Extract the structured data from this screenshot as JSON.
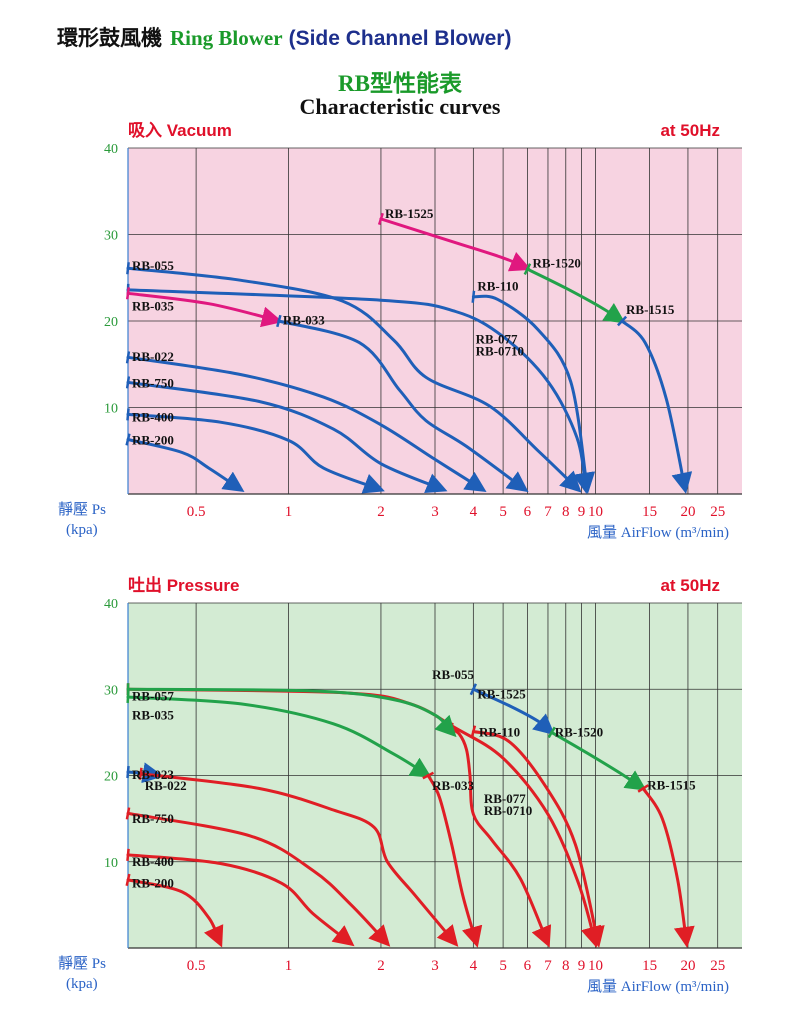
{
  "header": {
    "chinese_title": "環形鼓風機",
    "english_title": "Ring Blower",
    "subtitle": "(Side Channel Blower)"
  },
  "chart_title": "RB型性能表",
  "chart_subtitle": "Characteristic curves",
  "colors": {
    "vacuum_bg": "#f7d3e1",
    "pressure_bg": "#d3ebd3",
    "blue": "#1f5fb8",
    "red": "#e01e25",
    "green": "#22a24a",
    "magenta": "#e0187f",
    "grid": "#333333",
    "frame_blue": "#3a7fd0"
  },
  "chart_data": [
    {
      "type": "line",
      "title": "吸入 Vacuum",
      "frequency": "at 50Hz",
      "xlabel": "風量 AirFlow (m³/min)",
      "ylabel": "靜壓 Ps",
      "ylabel_unit": "(kpa)",
      "x_scale": "log",
      "x_tick_labels": [
        "0.5",
        "1",
        "2",
        "3",
        "4",
        "5",
        "6",
        "7",
        "8",
        "9",
        "10",
        "15",
        "20",
        "25"
      ],
      "x_ticks": [
        0.5,
        1,
        2,
        3,
        4,
        5,
        6,
        7,
        8,
        9,
        10,
        15,
        20,
        25
      ],
      "y_ticks": [
        10,
        20,
        30,
        40
      ],
      "ylim": [
        0,
        40
      ],
      "grid": true,
      "labels": [
        {
          "text": "RB-1525",
          "x": 2.0,
          "y": 31.9
        },
        {
          "text": "RB-1520",
          "x": 6.05,
          "y": 26.2
        },
        {
          "text": "RB-1515",
          "x": 12.2,
          "y": 20.8
        },
        {
          "text": "RB-110",
          "x": 4.0,
          "y": 23.5
        },
        {
          "text": "RB-077",
          "x": 3.95,
          "y": 17.4
        },
        {
          "text": "RB-0710",
          "x": 3.95,
          "y": 16.0
        },
        {
          "text": "RB-055",
          "x": 0.3,
          "y": 25.9
        },
        {
          "text": "RB-035",
          "x": 0.3,
          "y": 21.2
        },
        {
          "text": "RB-033",
          "x": 0.93,
          "y": 19.6
        },
        {
          "text": "RB-022",
          "x": 0.3,
          "y": 15.4
        },
        {
          "text": "RB-750",
          "x": 0.3,
          "y": 12.3
        },
        {
          "text": "RB-400",
          "x": 0.3,
          "y": 8.4
        },
        {
          "text": "RB-200",
          "x": 0.3,
          "y": 5.7
        }
      ],
      "series": [
        {
          "name": "RB-1525",
          "color": "magenta",
          "points": [
            [
              2.0,
              31.8
            ],
            [
              3.4,
              29.2
            ],
            [
              5.0,
              27.3
            ],
            [
              6.0,
              26.1
            ]
          ]
        },
        {
          "name": "RB-1520",
          "color": "green",
          "points": [
            [
              6.0,
              26.0
            ],
            [
              8.0,
              23.8
            ],
            [
              10.5,
              21.5
            ],
            [
              12.2,
              20.0
            ]
          ]
        },
        {
          "name": "RB-1515",
          "color": "blue",
          "points": [
            [
              12.2,
              20.0
            ],
            [
              14.5,
              17.5
            ],
            [
              17.0,
              11.0
            ],
            [
              19.6,
              0.5
            ]
          ]
        },
        {
          "name": "RB-110",
          "color": "blue",
          "points": [
            [
              4.0,
              22.8
            ],
            [
              4.8,
              22.5
            ],
            [
              6.5,
              19.0
            ],
            [
              8.3,
              13.0
            ],
            [
              9.4,
              0.5
            ]
          ]
        },
        {
          "name": "RB-077",
          "color": "blue",
          "points": [
            [
              0.3,
              23.6
            ],
            [
              2.0,
              22.4
            ],
            [
              3.5,
              21.1
            ],
            [
              5.0,
              18.2
            ],
            [
              7.0,
              13.0
            ],
            [
              8.7,
              6.5
            ],
            [
              9.3,
              0.5
            ]
          ]
        },
        {
          "name": "RB-055",
          "color": "blue",
          "points": [
            [
              0.3,
              26.1
            ],
            [
              0.7,
              24.7
            ],
            [
              1.5,
              22.3
            ],
            [
              2.2,
              17.8
            ],
            [
              2.8,
              13.5
            ],
            [
              4.5,
              10.2
            ],
            [
              6.5,
              5.0
            ],
            [
              8.8,
              0.5
            ]
          ]
        },
        {
          "name": "RB-035",
          "color": "magenta",
          "points": [
            [
              0.3,
              23.2
            ],
            [
              0.55,
              22.0
            ],
            [
              0.93,
              20.0
            ]
          ]
        },
        {
          "name": "RB-033",
          "color": "blue",
          "points": [
            [
              0.93,
              20.0
            ],
            [
              1.7,
              17.5
            ],
            [
              2.3,
              12.0
            ],
            [
              2.8,
              8.5
            ],
            [
              3.8,
              5.5
            ],
            [
              5.9,
              0.5
            ]
          ]
        },
        {
          "name": "RB-022",
          "color": "blue",
          "points": [
            [
              0.3,
              15.8
            ],
            [
              0.7,
              13.8
            ],
            [
              1.3,
              11.2
            ],
            [
              2.0,
              8.0
            ],
            [
              3.0,
              4.0
            ],
            [
              4.3,
              0.5
            ]
          ]
        },
        {
          "name": "RB-750",
          "color": "blue",
          "points": [
            [
              0.3,
              12.9
            ],
            [
              0.8,
              10.7
            ],
            [
              1.4,
              7.5
            ],
            [
              2.0,
              3.5
            ],
            [
              3.2,
              0.5
            ]
          ]
        },
        {
          "name": "RB-400",
          "color": "blue",
          "points": [
            [
              0.3,
              9.2
            ],
            [
              0.6,
              8.3
            ],
            [
              1.0,
              6.2
            ],
            [
              1.3,
              3.0
            ],
            [
              2.0,
              0.5
            ]
          ]
        },
        {
          "name": "RB-200",
          "color": "blue",
          "points": [
            [
              0.3,
              6.3
            ],
            [
              0.45,
              4.8
            ],
            [
              0.55,
              3.0
            ],
            [
              0.7,
              0.5
            ]
          ]
        }
      ]
    },
    {
      "type": "line",
      "title": "吐出 Pressure",
      "frequency": "at 50Hz",
      "xlabel": "風量 AirFlow (m³/min)",
      "ylabel": "靜壓 Ps",
      "ylabel_unit": "(kpa)",
      "x_scale": "log",
      "x_tick_labels": [
        "0.5",
        "1",
        "2",
        "3",
        "4",
        "5",
        "6",
        "7",
        "8",
        "9",
        "10",
        "15",
        "20",
        "25"
      ],
      "x_ticks": [
        0.5,
        1,
        2,
        3,
        4,
        5,
        6,
        7,
        8,
        9,
        10,
        15,
        20,
        25
      ],
      "y_ticks": [
        10,
        20,
        30,
        40
      ],
      "ylim": [
        0,
        40
      ],
      "grid": true,
      "labels": [
        {
          "text": "RB-055",
          "x": 2.85,
          "y": 31.2
        },
        {
          "text": "RB-1525",
          "x": 4.0,
          "y": 28.9
        },
        {
          "text": "RB-110",
          "x": 4.05,
          "y": 24.5
        },
        {
          "text": "RB-1520",
          "x": 7.15,
          "y": 24.5
        },
        {
          "text": "RB-057",
          "x": 0.3,
          "y": 28.7
        },
        {
          "text": "RB-035",
          "x": 0.3,
          "y": 26.5
        },
        {
          "text": "RB-023",
          "x": 0.3,
          "y": 19.6
        },
        {
          "text": "RB-022",
          "x": 0.33,
          "y": 18.3
        },
        {
          "text": "RB-033",
          "x": 2.85,
          "y": 18.3
        },
        {
          "text": "RB-1515",
          "x": 14.3,
          "y": 18.4
        },
        {
          "text": "RB-077",
          "x": 4.2,
          "y": 16.8
        },
        {
          "text": "RB-0710",
          "x": 4.2,
          "y": 15.4
        },
        {
          "text": "RB-750",
          "x": 0.3,
          "y": 14.5
        },
        {
          "text": "RB-400",
          "x": 0.3,
          "y": 9.5
        },
        {
          "text": "RB-200",
          "x": 0.3,
          "y": 7.0
        }
      ],
      "series": [
        {
          "name": "RB-1525",
          "color": "blue",
          "points": [
            [
              4.0,
              30.0
            ],
            [
              5.3,
              28.0
            ],
            [
              6.5,
              26.3
            ],
            [
              7.2,
              25.0
            ]
          ]
        },
        {
          "name": "RB-1520",
          "color": "green",
          "points": [
            [
              7.2,
              25.0
            ],
            [
              9.5,
              22.5
            ],
            [
              12.0,
              20.3
            ],
            [
              14.3,
              18.5
            ]
          ]
        },
        {
          "name": "RB-1515",
          "color": "red",
          "points": [
            [
              14.3,
              18.5
            ],
            [
              16.5,
              15.0
            ],
            [
              18.5,
              8.0
            ],
            [
              19.8,
              0.5
            ]
          ]
        },
        {
          "name": "RB-110",
          "color": "red",
          "points": [
            [
              4.0,
              25.1
            ],
            [
              5.2,
              24.0
            ],
            [
              6.8,
              19.0
            ],
            [
              8.6,
              12.0
            ],
            [
              10.2,
              0.5
            ]
          ]
        },
        {
          "name": "RB-077",
          "color": "red",
          "points": [
            [
              0.3,
              30.0
            ],
            [
              1.5,
              29.6
            ],
            [
              2.5,
              28.3
            ],
            [
              3.5,
              25.5
            ],
            [
              5.0,
              22.0
            ],
            [
              7.0,
              15.5
            ],
            [
              8.8,
              7.5
            ],
            [
              10.0,
              0.5
            ]
          ]
        },
        {
          "name": "RB-055",
          "color": "red",
          "points": [
            [
              3.35,
              25.5
            ],
            [
              3.6,
              24.8
            ],
            [
              3.8,
              23.0
            ],
            [
              3.9,
              20.0
            ],
            [
              4.0,
              15.5
            ],
            [
              4.6,
              12.5
            ],
            [
              5.7,
              8.0
            ],
            [
              7.0,
              0.5
            ]
          ]
        },
        {
          "name": "RB-057",
          "color": "green",
          "points": [
            [
              0.3,
              30.0
            ],
            [
              1.2,
              29.8
            ],
            [
              2.2,
              28.8
            ],
            [
              3.0,
              27.0
            ],
            [
              3.45,
              24.8
            ]
          ]
        },
        {
          "name": "RB-035",
          "color": "green",
          "points": [
            [
              0.3,
              29.1
            ],
            [
              0.7,
              28.3
            ],
            [
              1.4,
              26.0
            ],
            [
              2.2,
              22.5
            ],
            [
              2.85,
              20.0
            ]
          ]
        },
        {
          "name": "RB-033",
          "color": "red",
          "points": [
            [
              2.85,
              20.0
            ],
            [
              3.1,
              17.5
            ],
            [
              3.4,
              12.0
            ],
            [
              3.7,
              6.0
            ],
            [
              4.1,
              0.5
            ]
          ]
        },
        {
          "name": "RB-023",
          "color": "blue",
          "points": [
            [
              0.3,
              20.4
            ],
            [
              0.35,
              20.2
            ],
            [
              0.38,
              20.0
            ]
          ]
        },
        {
          "name": "RB-022",
          "color": "red",
          "points": [
            [
              0.33,
              20.2
            ],
            [
              0.8,
              18.5
            ],
            [
              1.4,
              16.0
            ],
            [
              1.9,
              14.0
            ],
            [
              2.1,
              10.0
            ],
            [
              2.6,
              6.0
            ],
            [
              3.5,
              0.5
            ]
          ]
        },
        {
          "name": "RB-750",
          "color": "red",
          "points": [
            [
              0.3,
              15.6
            ],
            [
              0.75,
              13.0
            ],
            [
              1.2,
              9.0
            ],
            [
              1.6,
              5.0
            ],
            [
              2.1,
              0.5
            ]
          ]
        },
        {
          "name": "RB-400",
          "color": "red",
          "points": [
            [
              0.3,
              10.8
            ],
            [
              0.6,
              9.8
            ],
            [
              0.95,
              7.5
            ],
            [
              1.2,
              4.0
            ],
            [
              1.6,
              0.5
            ]
          ]
        },
        {
          "name": "RB-200",
          "color": "red",
          "points": [
            [
              0.3,
              7.9
            ],
            [
              0.45,
              6.5
            ],
            [
              0.55,
              3.5
            ],
            [
              0.6,
              0.5
            ]
          ]
        }
      ]
    }
  ]
}
